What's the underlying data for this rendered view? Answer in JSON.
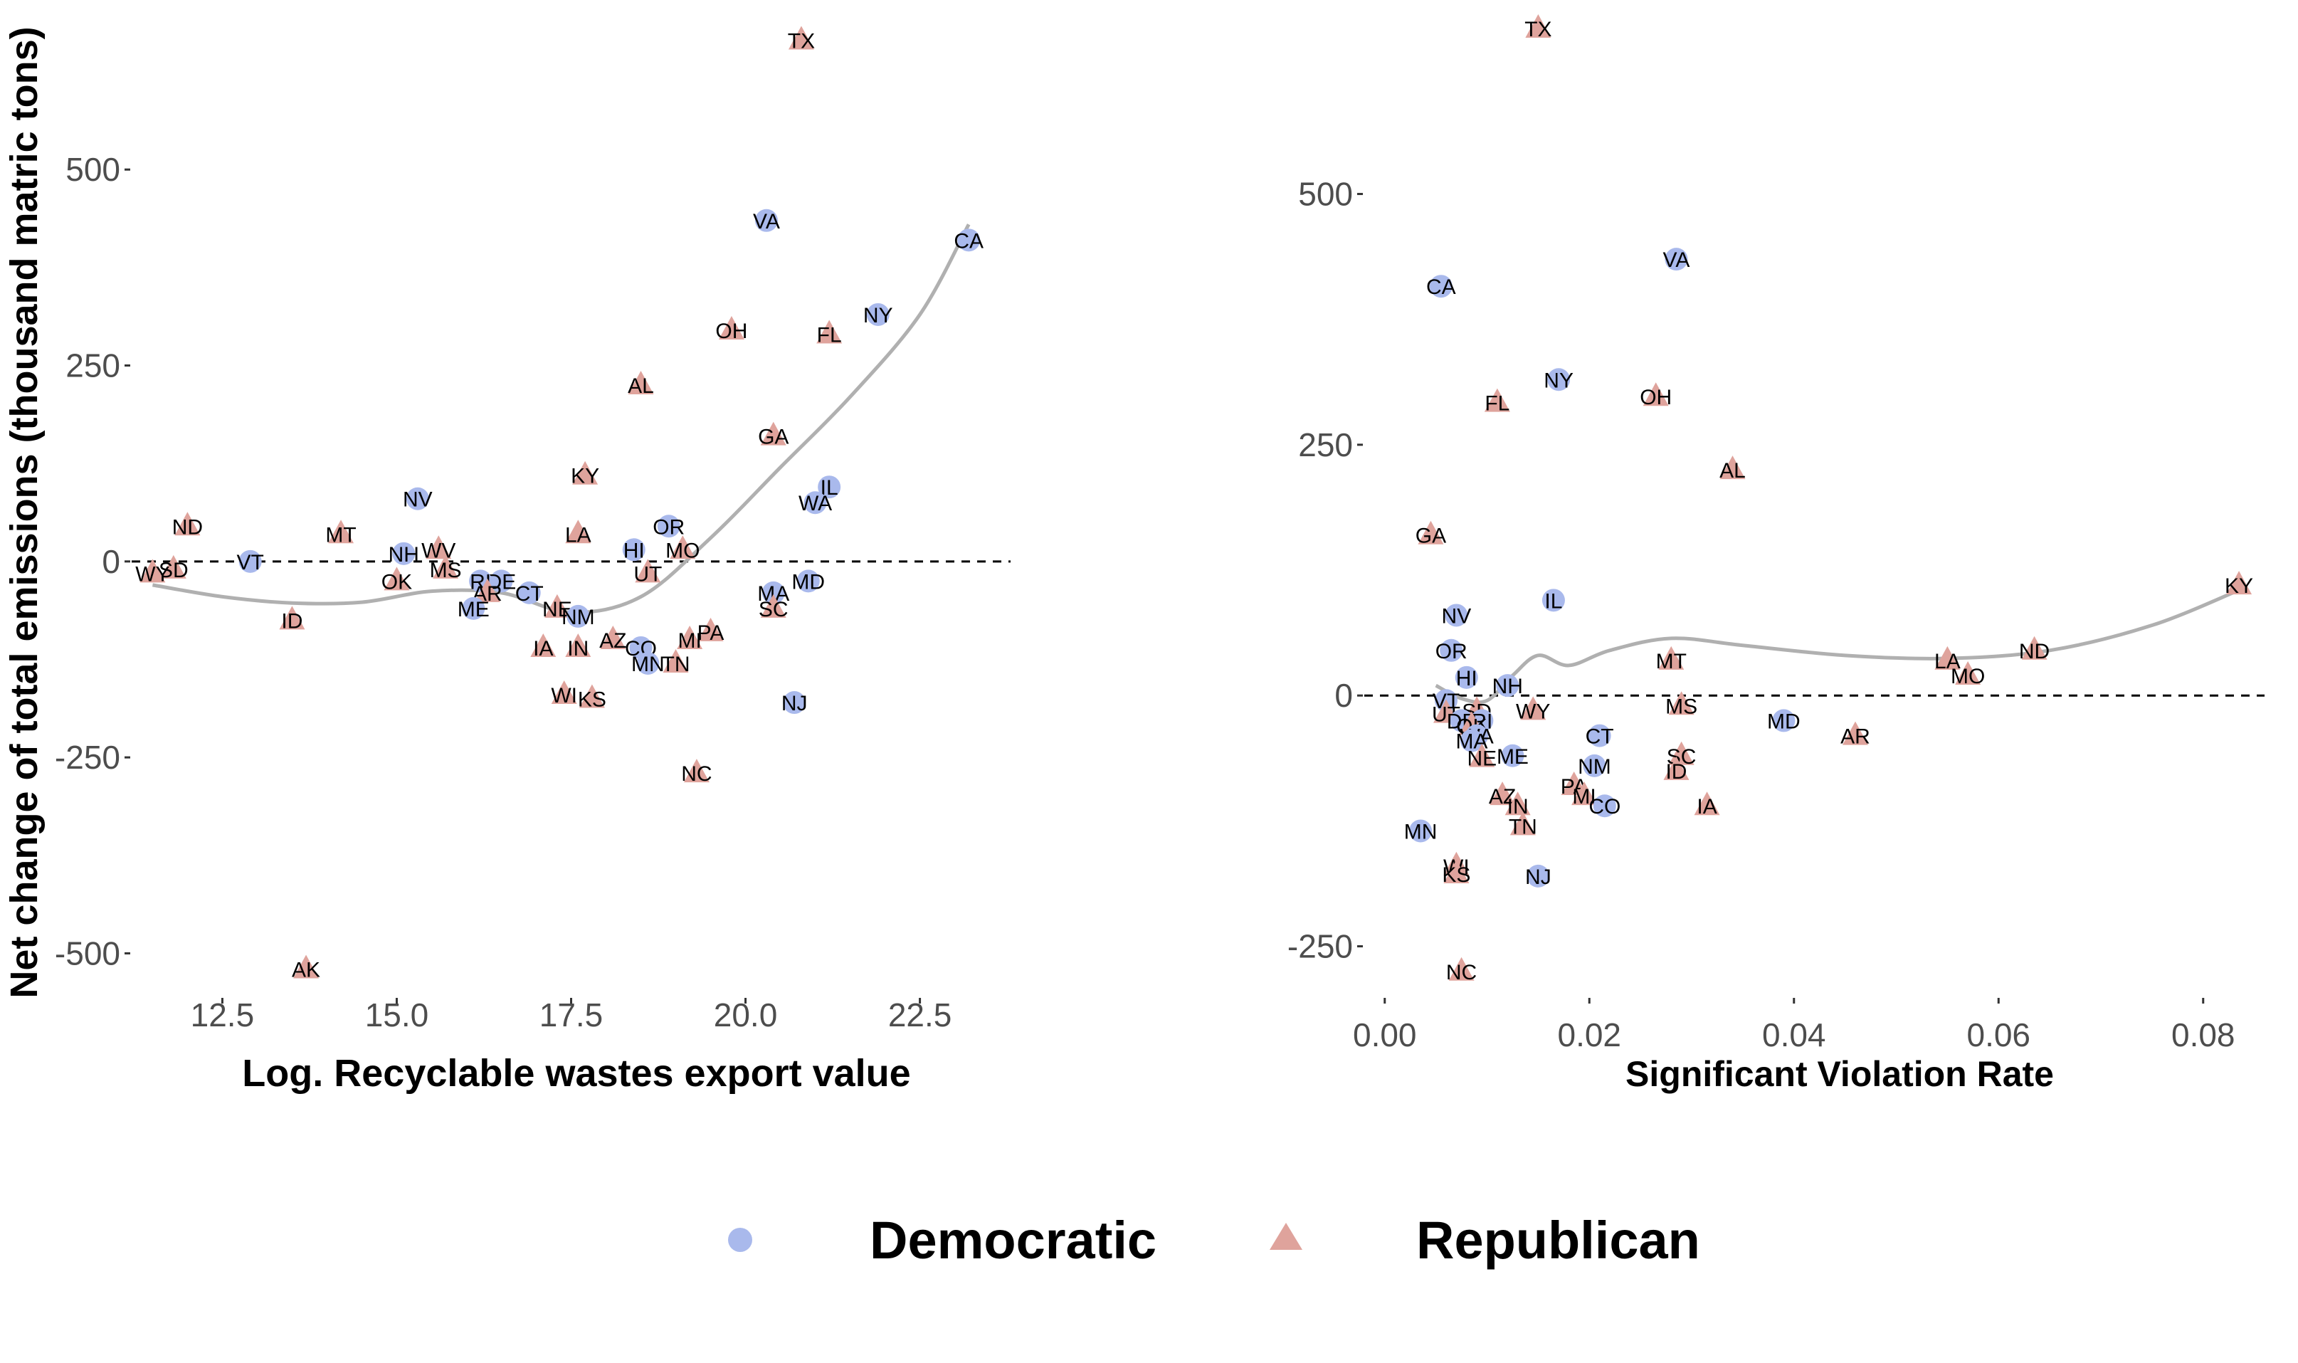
{
  "ylabel": "Net change of total emissions (thousand matric tons)",
  "colors": {
    "Democratic": "#a9b9ec",
    "Republican": "#dfa39c",
    "smooth": "#b0b0b0"
  },
  "legend": [
    {
      "party": "Democratic",
      "label": "Democratic",
      "shape": "circle"
    },
    {
      "party": "Republican",
      "label": "Republican",
      "shape": "triangle"
    }
  ],
  "chart_data": [
    {
      "type": "scatter",
      "xlabel": "Log. Recyclable wastes export value",
      "ylabel": "Net change of total emissions (thousand matric tons)",
      "xlim": [
        11.2,
        23.8
      ],
      "ylim": [
        -555,
        680
      ],
      "xticks": [
        12.5,
        15.0,
        17.5,
        20.0,
        22.5
      ],
      "xtick_labels": [
        "12.5",
        "15.0",
        "17.5",
        "20.0",
        "22.5"
      ],
      "yticks": [
        -500,
        -250,
        0,
        250,
        500
      ],
      "ytick_labels": [
        "-500",
        "-250",
        "0",
        "250",
        "500"
      ],
      "hline": 0,
      "points": [
        {
          "label": "TX",
          "party": "Republican",
          "x": 20.8,
          "y": 665
        },
        {
          "label": "VA",
          "party": "Democratic",
          "x": 20.3,
          "y": 435
        },
        {
          "label": "CA",
          "party": "Democratic",
          "x": 23.2,
          "y": 410
        },
        {
          "label": "NY",
          "party": "Democratic",
          "x": 21.9,
          "y": 315
        },
        {
          "label": "OH",
          "party": "Republican",
          "x": 19.8,
          "y": 295
        },
        {
          "label": "FL",
          "party": "Republican",
          "x": 21.2,
          "y": 290
        },
        {
          "label": "AL",
          "party": "Republican",
          "x": 18.5,
          "y": 225
        },
        {
          "label": "GA",
          "party": "Republican",
          "x": 20.4,
          "y": 160
        },
        {
          "label": "KY",
          "party": "Republican",
          "x": 17.7,
          "y": 110
        },
        {
          "label": "IL",
          "party": "Democratic",
          "x": 21.2,
          "y": 95
        },
        {
          "label": "WA",
          "party": "Democratic",
          "x": 21.0,
          "y": 75
        },
        {
          "label": "NV",
          "party": "Democratic",
          "x": 15.3,
          "y": 80
        },
        {
          "label": "OR",
          "party": "Democratic",
          "x": 18.9,
          "y": 45
        },
        {
          "label": "ND",
          "party": "Republican",
          "x": 12.0,
          "y": 45
        },
        {
          "label": "LA",
          "party": "Republican",
          "x": 17.6,
          "y": 35
        },
        {
          "label": "MT",
          "party": "Republican",
          "x": 14.2,
          "y": 35
        },
        {
          "label": "HI",
          "party": "Democratic",
          "x": 18.4,
          "y": 15
        },
        {
          "label": "MO",
          "party": "Republican",
          "x": 19.1,
          "y": 15
        },
        {
          "label": "NH",
          "party": "Democratic",
          "x": 15.1,
          "y": 10
        },
        {
          "label": "WV",
          "party": "Republican",
          "x": 15.6,
          "y": 15
        },
        {
          "label": "VT",
          "party": "Democratic",
          "x": 12.9,
          "y": 0
        },
        {
          "label": "MS",
          "party": "Republican",
          "x": 15.7,
          "y": -10
        },
        {
          "label": "SD",
          "party": "Republican",
          "x": 11.8,
          "y": -10
        },
        {
          "label": "WY",
          "party": "Republican",
          "x": 11.5,
          "y": -15
        },
        {
          "label": "UT",
          "party": "Republican",
          "x": 18.6,
          "y": -15
        },
        {
          "label": "OK",
          "party": "Republican",
          "x": 15.0,
          "y": -25
        },
        {
          "label": "DE",
          "party": "Democratic",
          "x": 16.5,
          "y": -25
        },
        {
          "label": "RI",
          "party": "Democratic",
          "x": 16.2,
          "y": -25
        },
        {
          "label": "MD",
          "party": "Democratic",
          "x": 20.9,
          "y": -25
        },
        {
          "label": "AR",
          "party": "Republican",
          "x": 16.3,
          "y": -40
        },
        {
          "label": "CT",
          "party": "Democratic",
          "x": 16.9,
          "y": -40
        },
        {
          "label": "MA",
          "party": "Democratic",
          "x": 20.4,
          "y": -40
        },
        {
          "label": "ME",
          "party": "Democratic",
          "x": 16.1,
          "y": -60
        },
        {
          "label": "NE",
          "party": "Republican",
          "x": 17.3,
          "y": -60
        },
        {
          "label": "SC",
          "party": "Republican",
          "x": 20.4,
          "y": -60
        },
        {
          "label": "NM",
          "party": "Democratic",
          "x": 17.6,
          "y": -70
        },
        {
          "label": "ID",
          "party": "Republican",
          "x": 13.5,
          "y": -75
        },
        {
          "label": "PA",
          "party": "Republican",
          "x": 19.5,
          "y": -90
        },
        {
          "label": "AZ",
          "party": "Republican",
          "x": 18.1,
          "y": -100
        },
        {
          "label": "MI",
          "party": "Republican",
          "x": 19.2,
          "y": -100
        },
        {
          "label": "IA",
          "party": "Republican",
          "x": 17.1,
          "y": -110
        },
        {
          "label": "IN",
          "party": "Republican",
          "x": 17.6,
          "y": -110
        },
        {
          "label": "CO",
          "party": "Democratic",
          "x": 18.5,
          "y": -110
        },
        {
          "label": "MN",
          "party": "Democratic",
          "x": 18.6,
          "y": -130
        },
        {
          "label": "TN",
          "party": "Republican",
          "x": 19.0,
          "y": -130
        },
        {
          "label": "NJ",
          "party": "Democratic",
          "x": 20.7,
          "y": -180
        },
        {
          "label": "WI",
          "party": "Republican",
          "x": 17.4,
          "y": -170
        },
        {
          "label": "KS",
          "party": "Republican",
          "x": 17.8,
          "y": -175
        },
        {
          "label": "NC",
          "party": "Republican",
          "x": 19.3,
          "y": -270
        },
        {
          "label": "AK",
          "party": "Republican",
          "x": 13.7,
          "y": -520
        }
      ],
      "smooth": [
        [
          11.5,
          -30
        ],
        [
          12.5,
          -45
        ],
        [
          13.5,
          -53
        ],
        [
          14.5,
          -52
        ],
        [
          15.5,
          -38
        ],
        [
          16.5,
          -40
        ],
        [
          17.5,
          -65
        ],
        [
          18.5,
          -45
        ],
        [
          19.5,
          30
        ],
        [
          20.5,
          120
        ],
        [
          21.5,
          210
        ],
        [
          22.5,
          315
        ],
        [
          23.2,
          430
        ]
      ]
    },
    {
      "type": "scatter",
      "xlabel": "Significant Violation Rate",
      "ylabel": "",
      "xlim": [
        -0.002,
        0.086
      ],
      "ylim": [
        -300,
        665
      ],
      "xticks": [
        0.0,
        0.02,
        0.04,
        0.06,
        0.08
      ],
      "xtick_labels": [
        "0.00",
        "0.02",
        "0.04",
        "0.06",
        "0.08"
      ],
      "yticks": [
        -250,
        0,
        250,
        500
      ],
      "ytick_labels": [
        "-250",
        "0",
        "250",
        "500"
      ],
      "hline": 0,
      "points": [
        {
          "label": "TX",
          "party": "Republican",
          "x": 0.015,
          "y": 665
        },
        {
          "label": "VA",
          "party": "Democratic",
          "x": 0.0285,
          "y": 435
        },
        {
          "label": "CA",
          "party": "Democratic",
          "x": 0.0055,
          "y": 408
        },
        {
          "label": "NY",
          "party": "Democratic",
          "x": 0.017,
          "y": 315
        },
        {
          "label": "OH",
          "party": "Republican",
          "x": 0.0265,
          "y": 298
        },
        {
          "label": "FL",
          "party": "Republican",
          "x": 0.011,
          "y": 292
        },
        {
          "label": "AL",
          "party": "Republican",
          "x": 0.034,
          "y": 225
        },
        {
          "label": "GA",
          "party": "Republican",
          "x": 0.0045,
          "y": 160
        },
        {
          "label": "KY",
          "party": "Republican",
          "x": 0.0835,
          "y": 110
        },
        {
          "label": "IL",
          "party": "Democratic",
          "x": 0.0165,
          "y": 95
        },
        {
          "label": "NV",
          "party": "Democratic",
          "x": 0.007,
          "y": 80
        },
        {
          "label": "OR",
          "party": "Democratic",
          "x": 0.0065,
          "y": 45
        },
        {
          "label": "ND",
          "party": "Republican",
          "x": 0.0635,
          "y": 45
        },
        {
          "label": "LA",
          "party": "Republican",
          "x": 0.055,
          "y": 35
        },
        {
          "label": "MT",
          "party": "Republican",
          "x": 0.028,
          "y": 35
        },
        {
          "label": "MO",
          "party": "Republican",
          "x": 0.057,
          "y": 20
        },
        {
          "label": "HI",
          "party": "Democratic",
          "x": 0.008,
          "y": 18
        },
        {
          "label": "NH",
          "party": "Democratic",
          "x": 0.012,
          "y": 10
        },
        {
          "label": "VT",
          "party": "Democratic",
          "x": 0.006,
          "y": -5
        },
        {
          "label": "MS",
          "party": "Republican",
          "x": 0.029,
          "y": -10
        },
        {
          "label": "WY",
          "party": "Republican",
          "x": 0.0145,
          "y": -15
        },
        {
          "label": "SD",
          "party": "Republican",
          "x": 0.009,
          "y": -15
        },
        {
          "label": "UT",
          "party": "Republican",
          "x": 0.006,
          "y": -18
        },
        {
          "label": "DE",
          "party": "Democratic",
          "x": 0.0075,
          "y": -25
        },
        {
          "label": "RI",
          "party": "Democratic",
          "x": 0.0095,
          "y": -25
        },
        {
          "label": "MD",
          "party": "Democratic",
          "x": 0.039,
          "y": -25
        },
        {
          "label": "OK",
          "party": "Republican",
          "x": 0.0085,
          "y": -30
        },
        {
          "label": "WA",
          "party": "Democratic",
          "x": 0.009,
          "y": -40
        },
        {
          "label": "CT",
          "party": "Democratic",
          "x": 0.021,
          "y": -40
        },
        {
          "label": "AR",
          "party": "Republican",
          "x": 0.046,
          "y": -40
        },
        {
          "label": "MA",
          "party": "Democratic",
          "x": 0.0085,
          "y": -45
        },
        {
          "label": "ME",
          "party": "Democratic",
          "x": 0.0125,
          "y": -60
        },
        {
          "label": "NE",
          "party": "Republican",
          "x": 0.0095,
          "y": -62
        },
        {
          "label": "SC",
          "party": "Republican",
          "x": 0.029,
          "y": -60
        },
        {
          "label": "ID",
          "party": "Republican",
          "x": 0.0285,
          "y": -75
        },
        {
          "label": "NM",
          "party": "Democratic",
          "x": 0.0205,
          "y": -70
        },
        {
          "label": "PA",
          "party": "Republican",
          "x": 0.0185,
          "y": -90
        },
        {
          "label": "AZ",
          "party": "Republican",
          "x": 0.0115,
          "y": -100
        },
        {
          "label": "MI",
          "party": "Republican",
          "x": 0.0195,
          "y": -100
        },
        {
          "label": "CO",
          "party": "Democratic",
          "x": 0.0215,
          "y": -110
        },
        {
          "label": "IA",
          "party": "Republican",
          "x": 0.0315,
          "y": -110
        },
        {
          "label": "IN",
          "party": "Republican",
          "x": 0.013,
          "y": -110
        },
        {
          "label": "TN",
          "party": "Republican",
          "x": 0.0135,
          "y": -130
        },
        {
          "label": "MN",
          "party": "Democratic",
          "x": 0.0035,
          "y": -135
        },
        {
          "label": "WI",
          "party": "Republican",
          "x": 0.007,
          "y": -170
        },
        {
          "label": "KS",
          "party": "Republican",
          "x": 0.007,
          "y": -178
        },
        {
          "label": "NJ",
          "party": "Democratic",
          "x": 0.015,
          "y": -180
        },
        {
          "label": "NC",
          "party": "Republican",
          "x": 0.0075,
          "y": -275
        }
      ],
      "smooth": [
        [
          0.005,
          10
        ],
        [
          0.0075,
          -3
        ],
        [
          0.01,
          -5
        ],
        [
          0.0125,
          20
        ],
        [
          0.015,
          40
        ],
        [
          0.018,
          30
        ],
        [
          0.022,
          45
        ],
        [
          0.028,
          57
        ],
        [
          0.035,
          50
        ],
        [
          0.045,
          40
        ],
        [
          0.055,
          37
        ],
        [
          0.065,
          45
        ],
        [
          0.075,
          70
        ],
        [
          0.0835,
          105
        ]
      ]
    }
  ]
}
